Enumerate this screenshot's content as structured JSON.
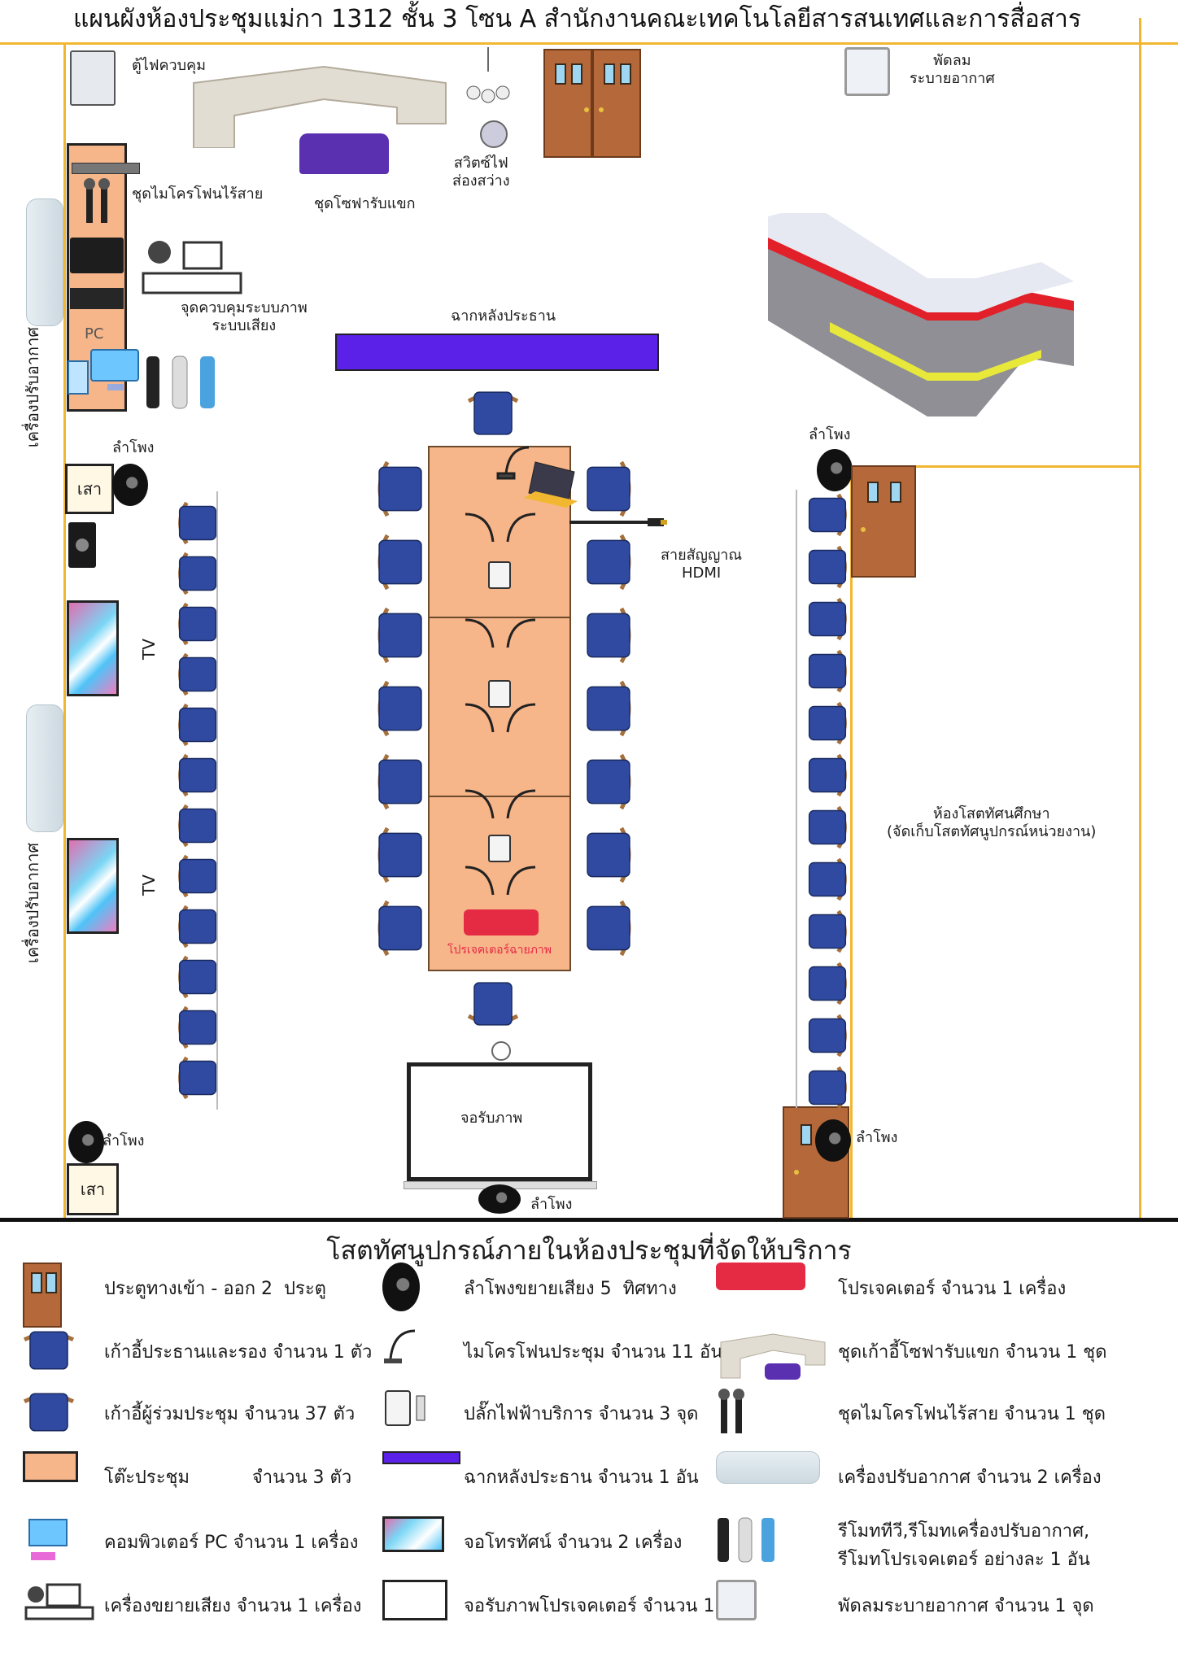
{
  "title": "แผนผังห้องประชุมแม่กา 1312 ชั้น 3 โซน A สำนักงานคณะเทคโนโลยีสารสนเทศและการสื่อสาร",
  "floor": {
    "labels": {
      "electric_cabinet": "ตู้ไฟควบคุม",
      "wireless_mic_set": "ชุดไมโครโฟนไร้สาย",
      "sofa_set": "ชุดโซฟารับแขก",
      "light_switch": "สวิตซ์ไฟ\nส่องสว่าง",
      "fan": "พัดลม\nระบายอากาศ",
      "control_point": "จุดควบคุมระบบภาพ\nระบบเสียง",
      "pc": "PC",
      "backdrop": "ฉากหลังประธาน",
      "air_conditioner_1": "เครื่องปรับอากาศ",
      "air_conditioner_2": "เครื่องปรับอากาศ",
      "speaker_tl": "ลำโพง",
      "speaker_tr": "ลำโพง",
      "speaker_bl": "ลำโพง",
      "speaker_br": "ลำโพง",
      "speaker_bottom": "ลำโพง",
      "post_top": "เสา",
      "post_bottom": "เสา",
      "tv_1": "TV",
      "tv_2": "TV",
      "hdmi": "สายสัญญาณ\nHDMI",
      "projector": "โปรเจคเตอร์ฉายภาพ",
      "screen": "จอรับภาพ",
      "av_room": "ห้องโสตทัศนศึกษา\n(จัดเก็บโสตทัศนูปกรณ์หน่วยงาน)"
    }
  },
  "legend": {
    "title": "โสตทัศนูปกรณ์ภายในห้องประชุมที่จัดให้บริการ",
    "col1": [
      {
        "icon": "door-icon",
        "text": "ประตูทางเข้า - ออก 2  ประตู"
      },
      {
        "icon": "chair-chairman-icon",
        "text": "เก้าอี้ประธานและรอง จำนวน 1 ตัว"
      },
      {
        "icon": "chair-attendee-icon",
        "text": "เก้าอี้ผู้ร่วมประชุม จำนวน 37 ตัว"
      },
      {
        "icon": "table-icon",
        "text": "โต๊ะประชุม           จำนวน 3 ตัว"
      },
      {
        "icon": "pc-icon",
        "text": "คอมพิวเตอร์ PC จำนวน 1 เครื่อง"
      },
      {
        "icon": "amplifier-icon",
        "text": "เครื่องขยายเสียง จำนวน 1 เครื่อง"
      }
    ],
    "col2": [
      {
        "icon": "speaker-icon",
        "text": "ลำโพงขยายเสียง 5  ทิศทาง"
      },
      {
        "icon": "conference-mic-icon",
        "text": "ไมโครโฟนประชุม จำนวน 11 อัน"
      },
      {
        "icon": "power-outlet-icon",
        "text": "ปลั๊กไฟฟ้าบริการ จำนวน 3 จุด"
      },
      {
        "icon": "backdrop-icon",
        "text": "ฉากหลังประธาน จำนวน 1 อัน"
      },
      {
        "icon": "tv-icon",
        "text": "จอโทรทัศน์ จำนวน 2 เครื่อง"
      },
      {
        "icon": "projection-screen-icon",
        "text": "จอรับภาพโปรเจคเตอร์ จำนวน 1 จอ"
      }
    ],
    "col3": [
      {
        "icon": "projector-icon",
        "text": "โปรเจคเตอร์ จำนวน 1 เครื่อง"
      },
      {
        "icon": "sofa-icon",
        "text": "ชุดเก้าอี้โซฟารับแขก จำนวน 1 ชุด"
      },
      {
        "icon": "wireless-mic-icon",
        "text": "ชุดไมโครโฟนไร้สาย จำนวน 1 ชุด"
      },
      {
        "icon": "air-conditioner-icon",
        "text": "เครื่องปรับอากาศ จำนวน 2 เครื่อง"
      },
      {
        "icon": "remote-icon",
        "text": "รีโมททีวี,รีโมทเครื่องปรับอากาศ,\nรีโมทโปรเจคเตอร์ อย่างละ 1 อัน"
      },
      {
        "icon": "fan-icon",
        "text": "พัดลมระบายอากาศ จำนวน 1 จุด"
      }
    ]
  },
  "colors": {
    "wall": "#f2b731",
    "chair": "#2f4aa0",
    "chair_frame": "#a5703c",
    "table": "#f7b58a",
    "backdrop": "#5b21e8",
    "reception_red": "#e2202a",
    "reception_yellow": "#e8e83a"
  }
}
